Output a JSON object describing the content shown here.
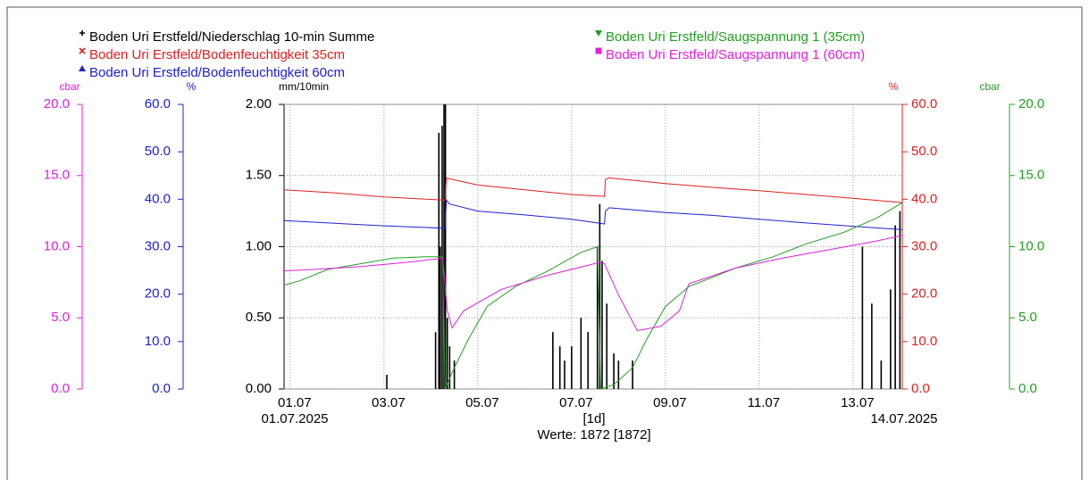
{
  "chart_data": {
    "type": "line",
    "xlim": [
      0.87,
      14.05
    ],
    "xticks": [
      {
        "value": 1,
        "label": "01.07"
      },
      {
        "value": 3,
        "label": "03.07"
      },
      {
        "value": 5,
        "label": "05.07"
      },
      {
        "value": 7,
        "label": "07.07"
      },
      {
        "value": 9,
        "label": "09.07"
      },
      {
        "value": 11,
        "label": "11.07"
      },
      {
        "value": 13,
        "label": "13.07"
      }
    ],
    "start_label": "01.07.2025",
    "end_label": "14.07.2025",
    "interval_label": "[1d]",
    "count_label": "Werte: 1872 [1872]",
    "grid": true,
    "y_axes": [
      {
        "label": "cbar",
        "color": "#e020e0",
        "ylim": [
          0,
          20
        ],
        "yticks": [
          {
            "value": 0,
            "label": "0.0"
          },
          {
            "value": 5,
            "label": "5.0"
          },
          {
            "value": 10,
            "label": "10.0"
          },
          {
            "value": 15,
            "label": "15.0"
          },
          {
            "value": 20,
            "label": "20.0"
          }
        ]
      },
      {
        "label": "%",
        "color": "#2020d0",
        "ylim": [
          0,
          60
        ],
        "yticks": [
          {
            "value": 0,
            "label": "0.0"
          },
          {
            "value": 10,
            "label": "10.0"
          },
          {
            "value": 20,
            "label": "20.0"
          },
          {
            "value": 30,
            "label": "30.0"
          },
          {
            "value": 40,
            "label": "40.0"
          },
          {
            "value": 50,
            "label": "50.0"
          },
          {
            "value": 60,
            "label": "60.0"
          }
        ]
      },
      {
        "label": "mm/10min",
        "color": "#000000",
        "ylim": [
          0,
          2
        ],
        "yticks": [
          {
            "value": 0,
            "label": "0.00"
          },
          {
            "value": 0.5,
            "label": "0.50"
          },
          {
            "value": 1,
            "label": "1.00"
          },
          {
            "value": 1.5,
            "label": "1.50"
          },
          {
            "value": 2,
            "label": "2.00"
          }
        ]
      },
      {
        "label": "%",
        "color": "#e02020",
        "ylim": [
          0,
          60
        ],
        "yticks": [
          {
            "value": 0,
            "label": "0.0"
          },
          {
            "value": 10,
            "label": "10.0"
          },
          {
            "value": 20,
            "label": "20.0"
          },
          {
            "value": 30,
            "label": "30.0"
          },
          {
            "value": 40,
            "label": "40.0"
          },
          {
            "value": 50,
            "label": "50.0"
          },
          {
            "value": 60,
            "label": "60.0"
          }
        ]
      },
      {
        "label": "cbar",
        "color": "#20a020",
        "ylim": [
          0,
          20
        ],
        "yticks": [
          {
            "value": 0,
            "label": "0.0"
          },
          {
            "value": 5,
            "label": "5.0"
          },
          {
            "value": 10,
            "label": "10.0"
          },
          {
            "value": 15,
            "label": "15.0"
          },
          {
            "value": 20,
            "label": "20.0"
          }
        ]
      }
    ],
    "series": [
      {
        "name": "Boden Uri Erstfeld/Niederschlag 10-min Summe",
        "color": "#000000",
        "kind": "bar",
        "marker": "plus",
        "axis": 2,
        "x": [
          3.06,
          4.1,
          4.17,
          4.2,
          4.24,
          4.28,
          4.31,
          4.35,
          4.4,
          4.5,
          6.6,
          6.75,
          6.85,
          7.0,
          7.2,
          7.35,
          7.55,
          7.6,
          7.65,
          7.75,
          7.9,
          8.0,
          8.3,
          13.2,
          13.4,
          13.6,
          13.8,
          13.9,
          14.0
        ],
        "values": [
          0.1,
          0.4,
          1.8,
          1.0,
          1.85,
          2.0,
          2.0,
          0.5,
          0.3,
          0.2,
          0.4,
          0.3,
          0.2,
          0.3,
          0.5,
          0.4,
          1.0,
          1.3,
          0.9,
          0.6,
          0.25,
          0.2,
          0.2,
          1.0,
          0.6,
          0.2,
          0.7,
          1.15,
          1.25
        ]
      },
      {
        "name": "Boden Uri Erstfeld/Bodenfeuchtigkeit 35cm",
        "color": "#e02020",
        "kind": "line",
        "marker": "x",
        "axis": 3,
        "x": [
          0.87,
          2,
          3,
          4.3,
          4.33,
          4.4,
          5,
          6,
          7,
          7.7,
          7.72,
          7.8,
          9,
          10,
          11,
          12,
          13,
          14.05
        ],
        "values": [
          42,
          41.3,
          40.5,
          39.8,
          44.5,
          44.3,
          43,
          42,
          41,
          40.6,
          44.2,
          44.5,
          43.3,
          42.5,
          41.8,
          41,
          40.2,
          39.3
        ]
      },
      {
        "name": "Boden Uri Erstfeld/Bodenfeuchtigkeit 60cm",
        "color": "#2020d0",
        "kind": "line",
        "marker": "triangle-up",
        "axis": 1,
        "x": [
          0.87,
          2,
          3,
          4.3,
          4.33,
          4.4,
          5,
          6,
          7,
          7.7,
          7.72,
          7.8,
          9,
          10,
          11,
          12,
          13,
          14.05
        ],
        "values": [
          35.5,
          34.9,
          34.4,
          33.9,
          39.8,
          39,
          37.5,
          36.7,
          35.8,
          34.8,
          37.5,
          38.2,
          37.2,
          36.6,
          35.8,
          35,
          34.3,
          33.6
        ]
      },
      {
        "name": "Boden Uri Erstfeld/Saugspannung 1 (35cm)",
        "color": "#20a020",
        "kind": "line",
        "marker": "triangle-down",
        "axis": 4,
        "x": [
          0.87,
          1.2,
          1.8,
          2.5,
          3.2,
          3.9,
          4.25,
          4.3,
          4.5,
          4.8,
          5.2,
          5.8,
          6.5,
          7.2,
          7.55,
          7.62,
          7.9,
          8.3,
          8.6,
          9,
          9.5,
          10.5,
          11.3,
          12,
          12.8,
          13.5,
          14.05
        ],
        "values": [
          7.3,
          7.6,
          8.4,
          8.8,
          9.2,
          9.3,
          9.3,
          0,
          1.5,
          3.5,
          5.8,
          7.2,
          8.3,
          9.6,
          10,
          0,
          0.3,
          1.5,
          3.5,
          5.8,
          7.2,
          8.5,
          9.3,
          10.2,
          11,
          12,
          13.1
        ]
      },
      {
        "name": "Boden Uri Erstfeld/Saugspannung 1 (60cm)",
        "color": "#e020e0",
        "kind": "line",
        "marker": "square",
        "axis": 0,
        "x": [
          0.87,
          1.5,
          2.5,
          3.5,
          4.25,
          4.35,
          4.45,
          4.7,
          5.5,
          6.5,
          7.6,
          7.7,
          8,
          8.4,
          8.9,
          9.3,
          9.5,
          10.5,
          11.5,
          12.5,
          13.5,
          14.05
        ],
        "values": [
          8.3,
          8.4,
          8.6,
          8.9,
          9.2,
          5.5,
          4.3,
          5.5,
          7,
          8,
          8.9,
          8.8,
          6.6,
          4.1,
          4.4,
          5.5,
          7.4,
          8.5,
          9.2,
          9.8,
          10.4,
          10.8
        ]
      }
    ]
  }
}
